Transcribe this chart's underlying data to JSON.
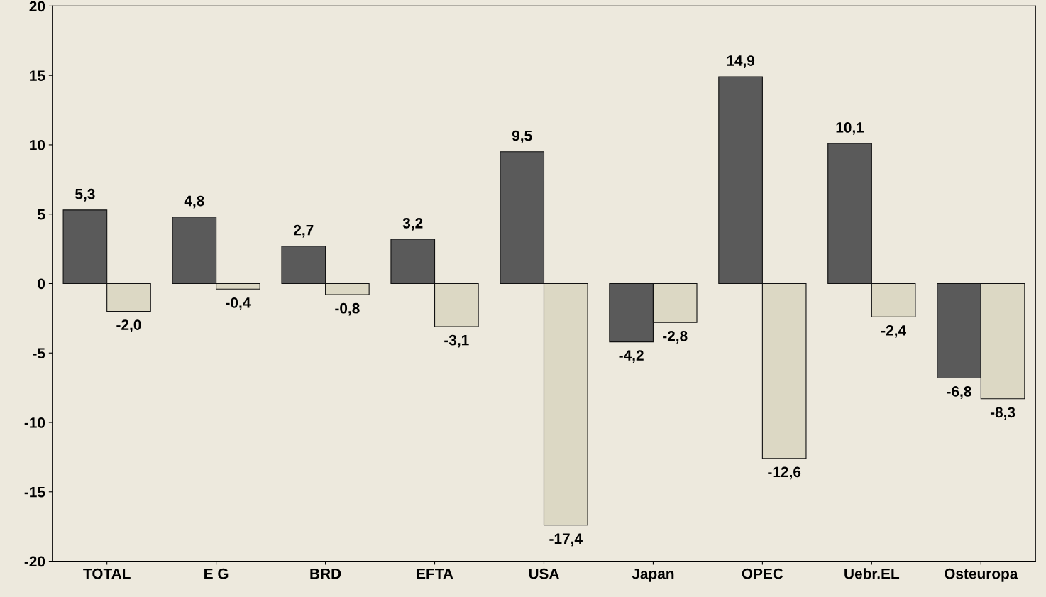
{
  "chart_data": {
    "type": "bar",
    "categories": [
      "TOTAL",
      "E G",
      "BRD",
      "EFTA",
      "USA",
      "Japan",
      "OPEC",
      "Uebr.EL",
      "Osteuropa"
    ],
    "series": [
      {
        "color": "#5a5a5a",
        "values": [
          5.3,
          4.8,
          2.7,
          3.2,
          9.5,
          -4.2,
          14.9,
          10.1,
          -6.8
        ],
        "value_labels": [
          "5,3",
          "4,8",
          "2,7",
          "3,2",
          "9,5",
          "-4,2",
          "14,9",
          "10,1",
          "-6,8"
        ]
      },
      {
        "color": "#dcd8c4",
        "values": [
          -2.0,
          -0.4,
          -0.8,
          -3.1,
          -17.4,
          -2.8,
          -12.6,
          -2.4,
          -8.3
        ],
        "value_labels": [
          "-2,0",
          "-0,4",
          "-0,8",
          "-3,1",
          "-17,4",
          "-2,8",
          "-12,6",
          "-2,4",
          "-8,3"
        ]
      }
    ],
    "ylim": [
      -20,
      20
    ],
    "yticks": [
      20,
      15,
      10,
      5,
      0,
      -5,
      -10,
      -15,
      -20
    ],
    "grid": false,
    "legend": false
  }
}
